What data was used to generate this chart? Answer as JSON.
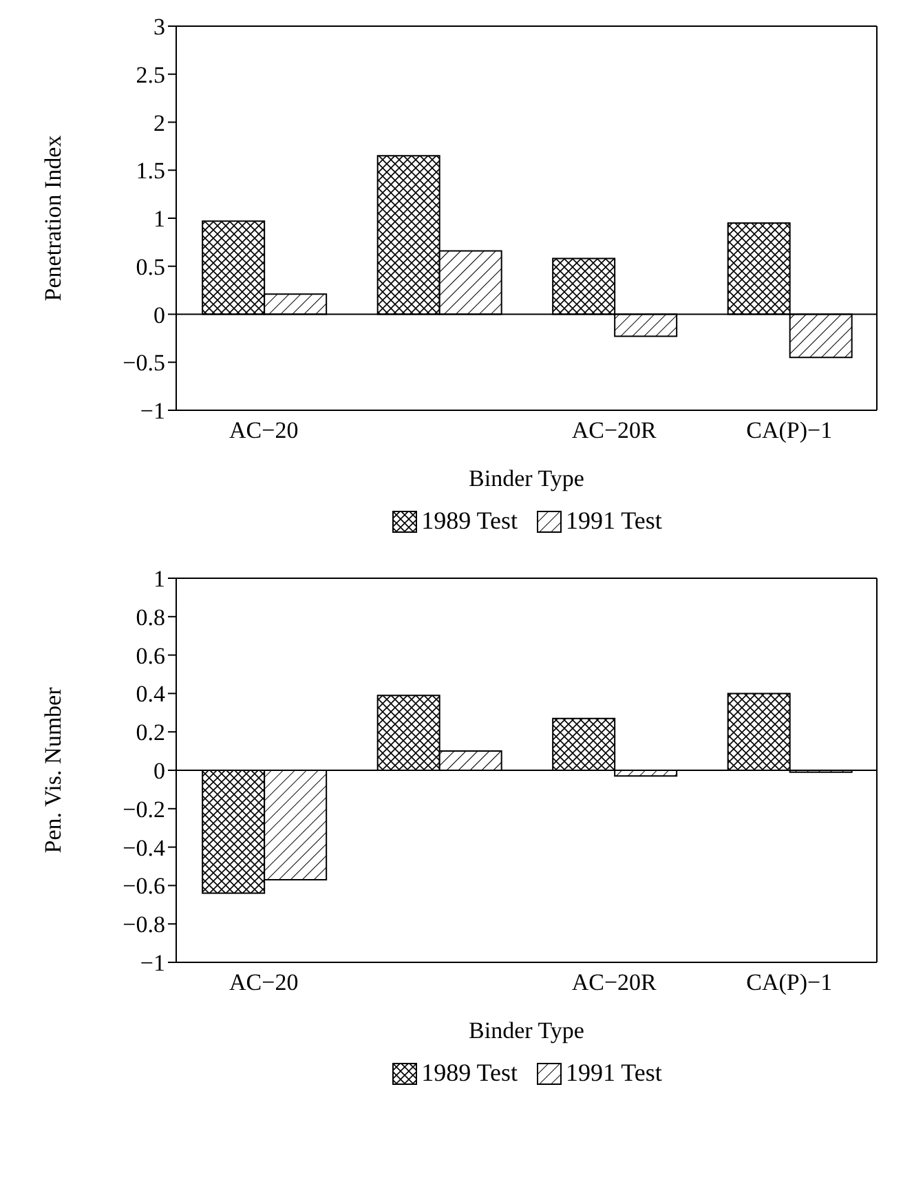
{
  "chart_data": [
    {
      "type": "bar",
      "categories": [
        "AC−20",
        null,
        "AC−20R",
        "CA(P)−1"
      ],
      "xlabel": "Binder Type",
      "ylabel": "Penetration Index",
      "series": [
        {
          "name": "1989 Test",
          "color": "#000000",
          "values": [
            0.97,
            1.65,
            0.58,
            0.95
          ]
        },
        {
          "name": "1991 Test",
          "color": "#000000",
          "values": [
            0.21,
            0.66,
            -0.23,
            -0.45
          ]
        }
      ],
      "ylim": [
        -1,
        3
      ],
      "yticks": [
        -1,
        -0.5,
        0,
        0.5,
        1,
        1.5,
        2,
        2.5,
        3
      ],
      "ref_lines": [
        {
          "axis": "y",
          "value": 0
        }
      ],
      "grid": false,
      "legend": "bottom"
    },
    {
      "type": "bar",
      "categories": [
        "AC−20",
        null,
        "AC−20R",
        "CA(P)−1"
      ],
      "xlabel": "Binder Type",
      "ylabel": "Pen. Vis. Number",
      "series": [
        {
          "name": "1989 Test",
          "color": "#000000",
          "values": [
            -0.64,
            0.39,
            0.27,
            0.4
          ]
        },
        {
          "name": "1991 Test",
          "color": "#000000",
          "values": [
            -0.57,
            0.1,
            -0.03,
            -0.01
          ]
        }
      ],
      "ylim": [
        -1,
        1
      ],
      "yticks": [
        -1,
        -0.8,
        -0.6,
        -0.4,
        -0.2,
        0,
        0.2,
        0.4,
        0.6,
        0.8,
        1
      ],
      "ref_lines": [
        {
          "axis": "y",
          "value": 0
        }
      ],
      "grid": false,
      "legend": "bottom"
    }
  ]
}
